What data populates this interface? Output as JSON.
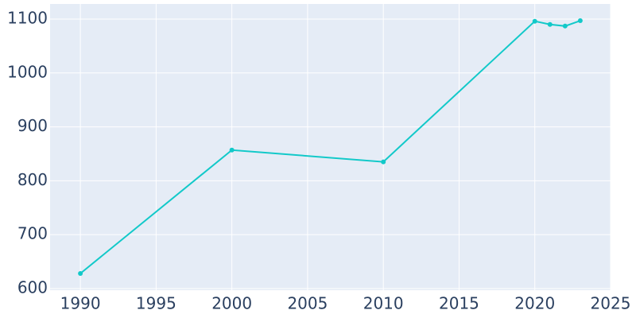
{
  "chart_data": {
    "type": "line",
    "x": [
      1990,
      2000,
      2010,
      2020,
      2021,
      2022,
      2023
    ],
    "series": [
      {
        "color": "#12c9c9",
        "values": [
          628,
          857,
          835,
          1096,
          1090,
          1087,
          1097
        ]
      }
    ],
    "xlim": [
      1988,
      2025
    ],
    "xticks": [
      1990,
      1995,
      2000,
      2005,
      2010,
      2015,
      2020,
      2025
    ],
    "ylim": [
      597,
      1128
    ],
    "yticks": [
      600,
      700,
      800,
      900,
      1000,
      1100
    ],
    "grid": true,
    "background": "#e5ecf6"
  }
}
